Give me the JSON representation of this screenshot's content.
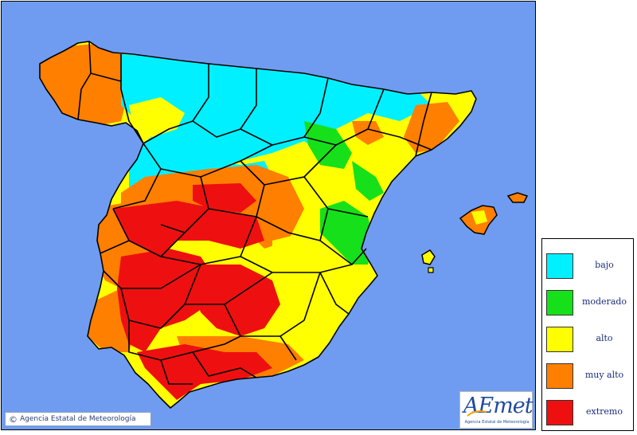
{
  "map": {
    "legend_title": "",
    "legend": [
      {
        "level": "bajo",
        "color": "#00f0ff"
      },
      {
        "level": "moderado",
        "color": "#16e01a"
      },
      {
        "level": "alto",
        "color": "#ffff00"
      },
      {
        "level": "muy alto",
        "color": "#ff7f00"
      },
      {
        "level": "extremo",
        "color": "#ee1010"
      }
    ],
    "sea_color": "#6f9cf0",
    "copyright": {
      "symbol": "©",
      "text": "Agencia Estatal de Meteorología"
    },
    "logo": {
      "text": "AEmet",
      "subtitle": "Agencia Estatal de Meteorología"
    }
  }
}
